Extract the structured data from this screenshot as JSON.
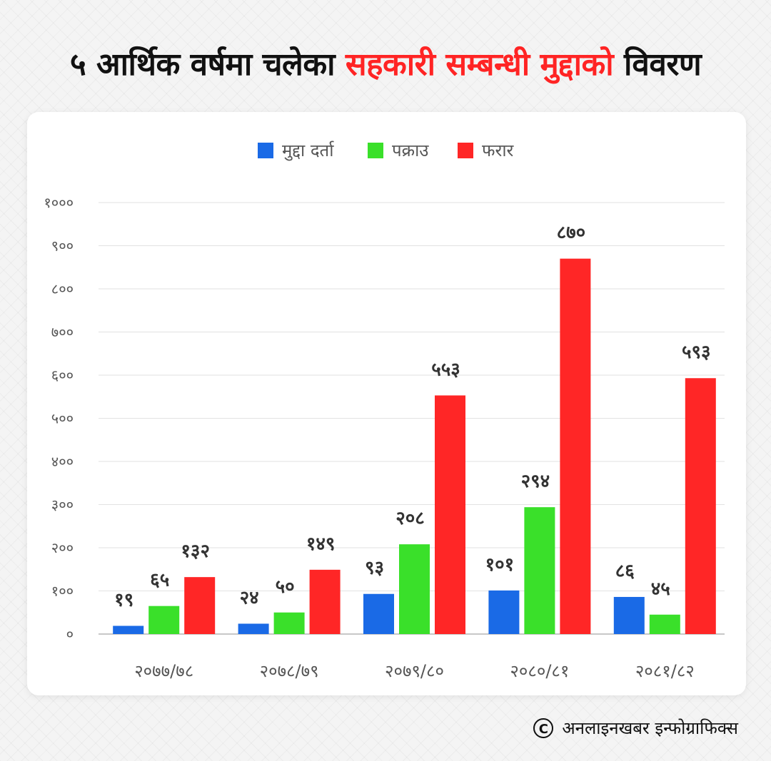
{
  "title": {
    "part1": "५ आर्थिक वर्षमा चलेका ",
    "highlight": "सहकारी सम्बन्धी मुद्दाको",
    "part2": " विवरण"
  },
  "credit": {
    "icon": "copyright-icon",
    "text": "अनलाइनखबर इन्फोग्राफिक्स"
  },
  "colors": {
    "title_highlight": "#ff2424",
    "series": [
      "#1a6ae6",
      "#3ae02a",
      "#ff2626"
    ]
  },
  "chart_data": {
    "type": "bar",
    "categories": [
      "२०७७/७८",
      "२०७८/७९",
      "२०७९/८०",
      "२०८०/८१",
      "२०८१/८२"
    ],
    "series": [
      {
        "name": "मुद्दा दर्ता",
        "values": [
          19,
          24,
          93,
          101,
          86
        ],
        "labels": [
          "१९",
          "२४",
          "९३",
          "१०१",
          "८६"
        ]
      },
      {
        "name": "पक्राउ",
        "values": [
          65,
          50,
          208,
          294,
          45
        ],
        "labels": [
          "६५",
          "५०",
          "२०८",
          "२९४",
          "४५"
        ]
      },
      {
        "name": "फरार",
        "values": [
          132,
          149,
          553,
          870,
          593
        ],
        "labels": [
          "१३२",
          "१४९",
          "५५३",
          "८७०",
          "५९३"
        ]
      }
    ],
    "ylim": [
      0,
      1000
    ],
    "yticks": [
      0,
      100,
      200,
      300,
      400,
      500,
      600,
      700,
      800,
      900,
      1000
    ],
    "ytick_labels": [
      "०",
      "१००",
      "२००",
      "३००",
      "४००",
      "५००",
      "६००",
      "७००",
      "८००",
      "९००",
      "१०००"
    ],
    "legend": "top-center",
    "grid": true
  }
}
